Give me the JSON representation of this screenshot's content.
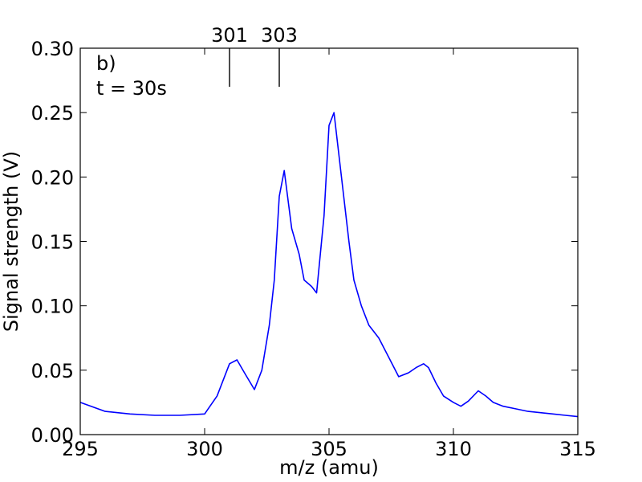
{
  "chart_data": {
    "type": "line",
    "title": "",
    "xlabel": "m/z (amu)",
    "ylabel": "Signal strength (V)",
    "xlim": [
      295,
      315
    ],
    "ylim": [
      0,
      0.3
    ],
    "x_ticks": [
      295,
      300,
      305,
      310,
      315
    ],
    "x_tick_labels": [
      "295",
      "300",
      "305",
      "310",
      "315"
    ],
    "y_ticks": [
      0,
      0.05,
      0.1,
      0.15,
      0.2,
      0.25,
      0.3
    ],
    "y_tick_labels": [
      "0.00",
      "0.05",
      "0.10",
      "0.15",
      "0.20",
      "0.25",
      "0.30"
    ],
    "grid": false,
    "panel_label": "b)",
    "time_label": "t = 30s",
    "markers": [
      {
        "x": 301,
        "label": "301"
      },
      {
        "x": 303,
        "label": "303"
      }
    ],
    "series": [
      {
        "color": "#0000ff",
        "x": [
          295.0,
          296.0,
          297.0,
          298.0,
          299.0,
          300.0,
          300.5,
          301.0,
          301.3,
          301.6,
          302.0,
          302.3,
          302.6,
          302.8,
          303.0,
          303.2,
          303.5,
          303.8,
          304.0,
          304.3,
          304.5,
          304.8,
          305.0,
          305.2,
          305.5,
          305.8,
          306.0,
          306.3,
          306.6,
          307.0,
          307.4,
          307.8,
          308.2,
          308.5,
          308.8,
          309.0,
          309.3,
          309.6,
          310.0,
          310.3,
          310.6,
          311.0,
          311.3,
          311.6,
          312.0,
          312.5,
          313.0,
          313.5,
          314.0,
          314.5,
          315.0
        ],
        "y": [
          0.025,
          0.018,
          0.016,
          0.015,
          0.015,
          0.016,
          0.03,
          0.055,
          0.058,
          0.048,
          0.035,
          0.05,
          0.085,
          0.12,
          0.185,
          0.205,
          0.16,
          0.14,
          0.12,
          0.115,
          0.11,
          0.17,
          0.24,
          0.25,
          0.2,
          0.15,
          0.12,
          0.1,
          0.085,
          0.075,
          0.06,
          0.045,
          0.048,
          0.052,
          0.055,
          0.052,
          0.04,
          0.03,
          0.025,
          0.022,
          0.026,
          0.034,
          0.03,
          0.025,
          0.022,
          0.02,
          0.018,
          0.017,
          0.016,
          0.015,
          0.014
        ]
      }
    ]
  }
}
